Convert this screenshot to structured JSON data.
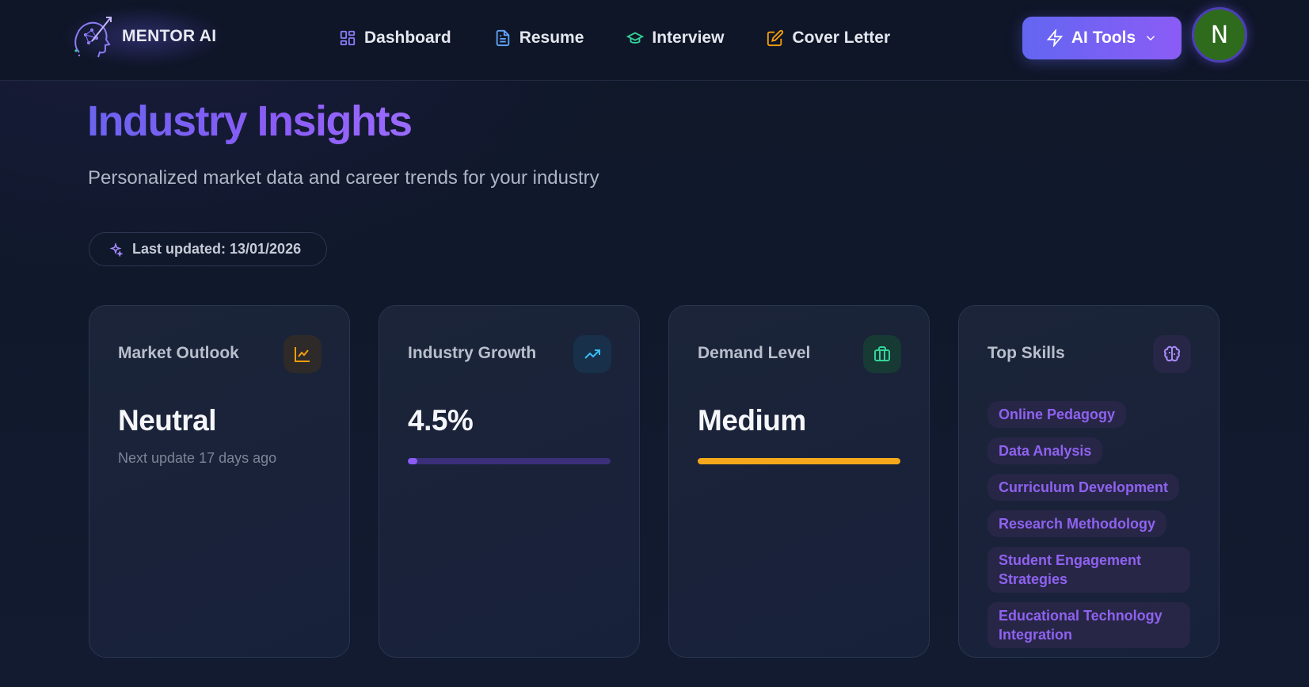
{
  "app": {
    "logo_text": "MENTOR AI"
  },
  "nav": {
    "items": [
      {
        "label": "Dashboard",
        "icon": "dashboard-grid-icon",
        "color": "#8b7cf6"
      },
      {
        "label": "Resume",
        "icon": "document-icon",
        "color": "#60a5fa"
      },
      {
        "label": "Interview",
        "icon": "graduation-cap-icon",
        "color": "#34d399"
      },
      {
        "label": "Cover Letter",
        "icon": "edit-pen-icon",
        "color": "#f59e0b"
      }
    ],
    "ai_tools_label": "AI Tools",
    "avatar_initial": "N"
  },
  "header": {
    "title": "Industry Insights",
    "subtitle": "Personalized market data and career trends for your industry",
    "last_updated": "Last updated: 13/01/2026"
  },
  "cards": {
    "market_outlook": {
      "title": "Market Outlook",
      "value": "Neutral",
      "note": "Next update 17 days ago",
      "icon": "line-chart-icon",
      "accent": "#f59e0b"
    },
    "industry_growth": {
      "title": "Industry Growth",
      "value": "4.5%",
      "progress_percent": 4.5,
      "icon": "trending-up-icon",
      "accent": "#38bdf8"
    },
    "demand_level": {
      "title": "Demand Level",
      "value": "Medium",
      "progress_percent": 100,
      "icon": "briefcase-icon",
      "accent": "#34d399"
    },
    "top_skills": {
      "title": "Top Skills",
      "icon": "brain-icon",
      "accent": "#a78bfa",
      "skills": [
        "Online Pedagogy",
        "Data Analysis",
        "Curriculum Development",
        "Research Methodology",
        "Student Engagement Strategies",
        "Educational Technology Integration"
      ]
    }
  }
}
